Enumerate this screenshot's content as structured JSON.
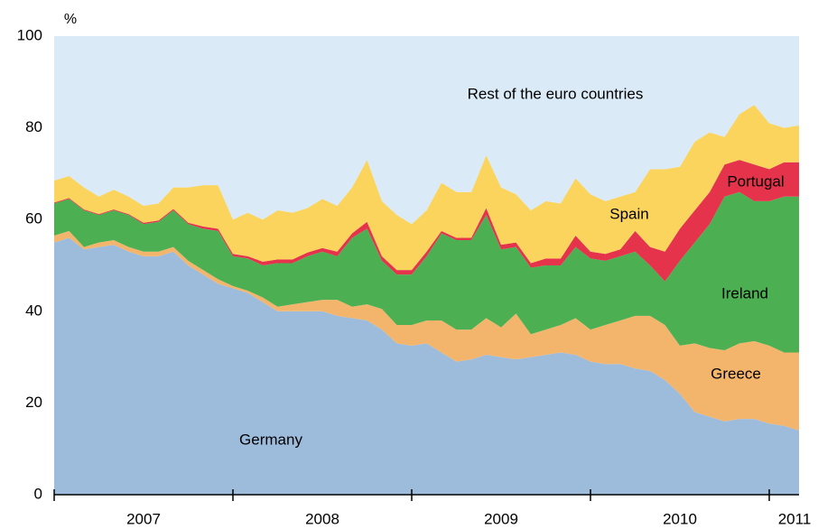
{
  "chart_data": {
    "type": "stacked_area",
    "ylabel": "%",
    "categories": [
      null,
      null,
      null,
      null,
      null,
      null,
      "2007",
      null,
      null,
      null,
      null,
      null,
      null,
      null,
      null,
      null,
      null,
      null,
      "2008",
      null,
      null,
      null,
      null,
      null,
      null,
      null,
      null,
      null,
      null,
      null,
      "2009",
      null,
      null,
      null,
      null,
      null,
      null,
      null,
      null,
      null,
      null,
      null,
      "2010",
      null,
      null,
      null,
      null,
      null,
      null,
      null,
      "2011"
    ],
    "ylim": [
      0,
      100
    ],
    "yticks": [
      0,
      20,
      40,
      60,
      80,
      100
    ],
    "series": [
      {
        "name": "Germany",
        "color": "#9dbcdc",
        "values": [
          55,
          56,
          53.5,
          54,
          54.5,
          53,
          52,
          52,
          53,
          50,
          48,
          46,
          45,
          44,
          42,
          40,
          40,
          40,
          40,
          39,
          38.5,
          38,
          36,
          33,
          32.5,
          33,
          31,
          29,
          29.5,
          30.5,
          30,
          29.5,
          30,
          30.5,
          31,
          30.5,
          29,
          28.5,
          28.5,
          27.5,
          27,
          25,
          22,
          18,
          17,
          16,
          16.5,
          16.5,
          15.5,
          15,
          14
        ]
      },
      {
        "name": "Greece",
        "color": "#f3b56c",
        "values": [
          1.5,
          1.5,
          0.5,
          1,
          1,
          1,
          1,
          1,
          1,
          1,
          1,
          1,
          0.5,
          0.5,
          1,
          1,
          1.5,
          2,
          2.5,
          3.5,
          2.5,
          3.5,
          4.5,
          4,
          4.5,
          5,
          7,
          7,
          6.5,
          8,
          6.5,
          10,
          5,
          5.5,
          6,
          8,
          7,
          8.5,
          9.5,
          11.5,
          12,
          12,
          10.5,
          15,
          15,
          15.5,
          16.5,
          17,
          17,
          16,
          17
        ]
      },
      {
        "name": "Ireland",
        "color": "#4caf52",
        "values": [
          7,
          7,
          8,
          6,
          6.5,
          7,
          6,
          6.5,
          8,
          8,
          9,
          10.5,
          6.5,
          7,
          7,
          9.5,
          9,
          10,
          10.5,
          9.5,
          15,
          16.5,
          10.5,
          11,
          11,
          14,
          19,
          19.5,
          19.5,
          22.5,
          17,
          14.5,
          14.5,
          14,
          13,
          15.5,
          15.5,
          14,
          14,
          14,
          11,
          9.5,
          18.5,
          22,
          27,
          33.5,
          33,
          30.5,
          31.5,
          34,
          34
        ]
      },
      {
        "name": "Portugal",
        "color": "#e5334b",
        "values": [
          0.2,
          0.2,
          0.2,
          0.2,
          0.2,
          0.2,
          0.3,
          0.3,
          0.3,
          0.3,
          0.5,
          0.5,
          0.5,
          0.5,
          0.8,
          0.8,
          0.8,
          0.8,
          0.8,
          1,
          1,
          1.5,
          1,
          1,
          1,
          1,
          0.5,
          0.5,
          0.5,
          1.5,
          1,
          1,
          1,
          1.5,
          1.5,
          2.5,
          1.5,
          1.5,
          1.5,
          4.5,
          4,
          6.5,
          7,
          7,
          7,
          7,
          7,
          8,
          7,
          7.5,
          7.5
        ]
      },
      {
        "name": "Spain",
        "color": "#fad45c",
        "values": [
          4.8,
          4.8,
          4.8,
          3.8,
          4.3,
          3.8,
          3.7,
          3.7,
          4.7,
          7.7,
          9,
          9.5,
          7.5,
          9.5,
          9.2,
          10.7,
          10.2,
          9.7,
          10.7,
          10,
          10,
          13.5,
          12,
          12,
          10,
          9,
          10.5,
          10,
          10,
          11.5,
          12.5,
          10.5,
          11.5,
          12.5,
          12,
          12.5,
          12.5,
          11.5,
          11.5,
          8.5,
          17,
          18,
          13.5,
          15,
          13,
          6,
          10,
          13,
          10,
          7.5,
          8
        ]
      },
      {
        "name": "Rest of the euro countries",
        "color": "#dbeaf7",
        "values": [
          31.5,
          30.5,
          33,
          35,
          33.5,
          35,
          37,
          36.5,
          33,
          33,
          32.5,
          32.5,
          40,
          38.5,
          40,
          38,
          38.5,
          37.5,
          35.5,
          37,
          33,
          27,
          36,
          39,
          41,
          38,
          32,
          34,
          34,
          26,
          33,
          34.5,
          38,
          36,
          36.5,
          31,
          34.5,
          36,
          35,
          34,
          29,
          29,
          28.5,
          23,
          21,
          22,
          17,
          15,
          19,
          20,
          19.5
        ]
      }
    ]
  }
}
